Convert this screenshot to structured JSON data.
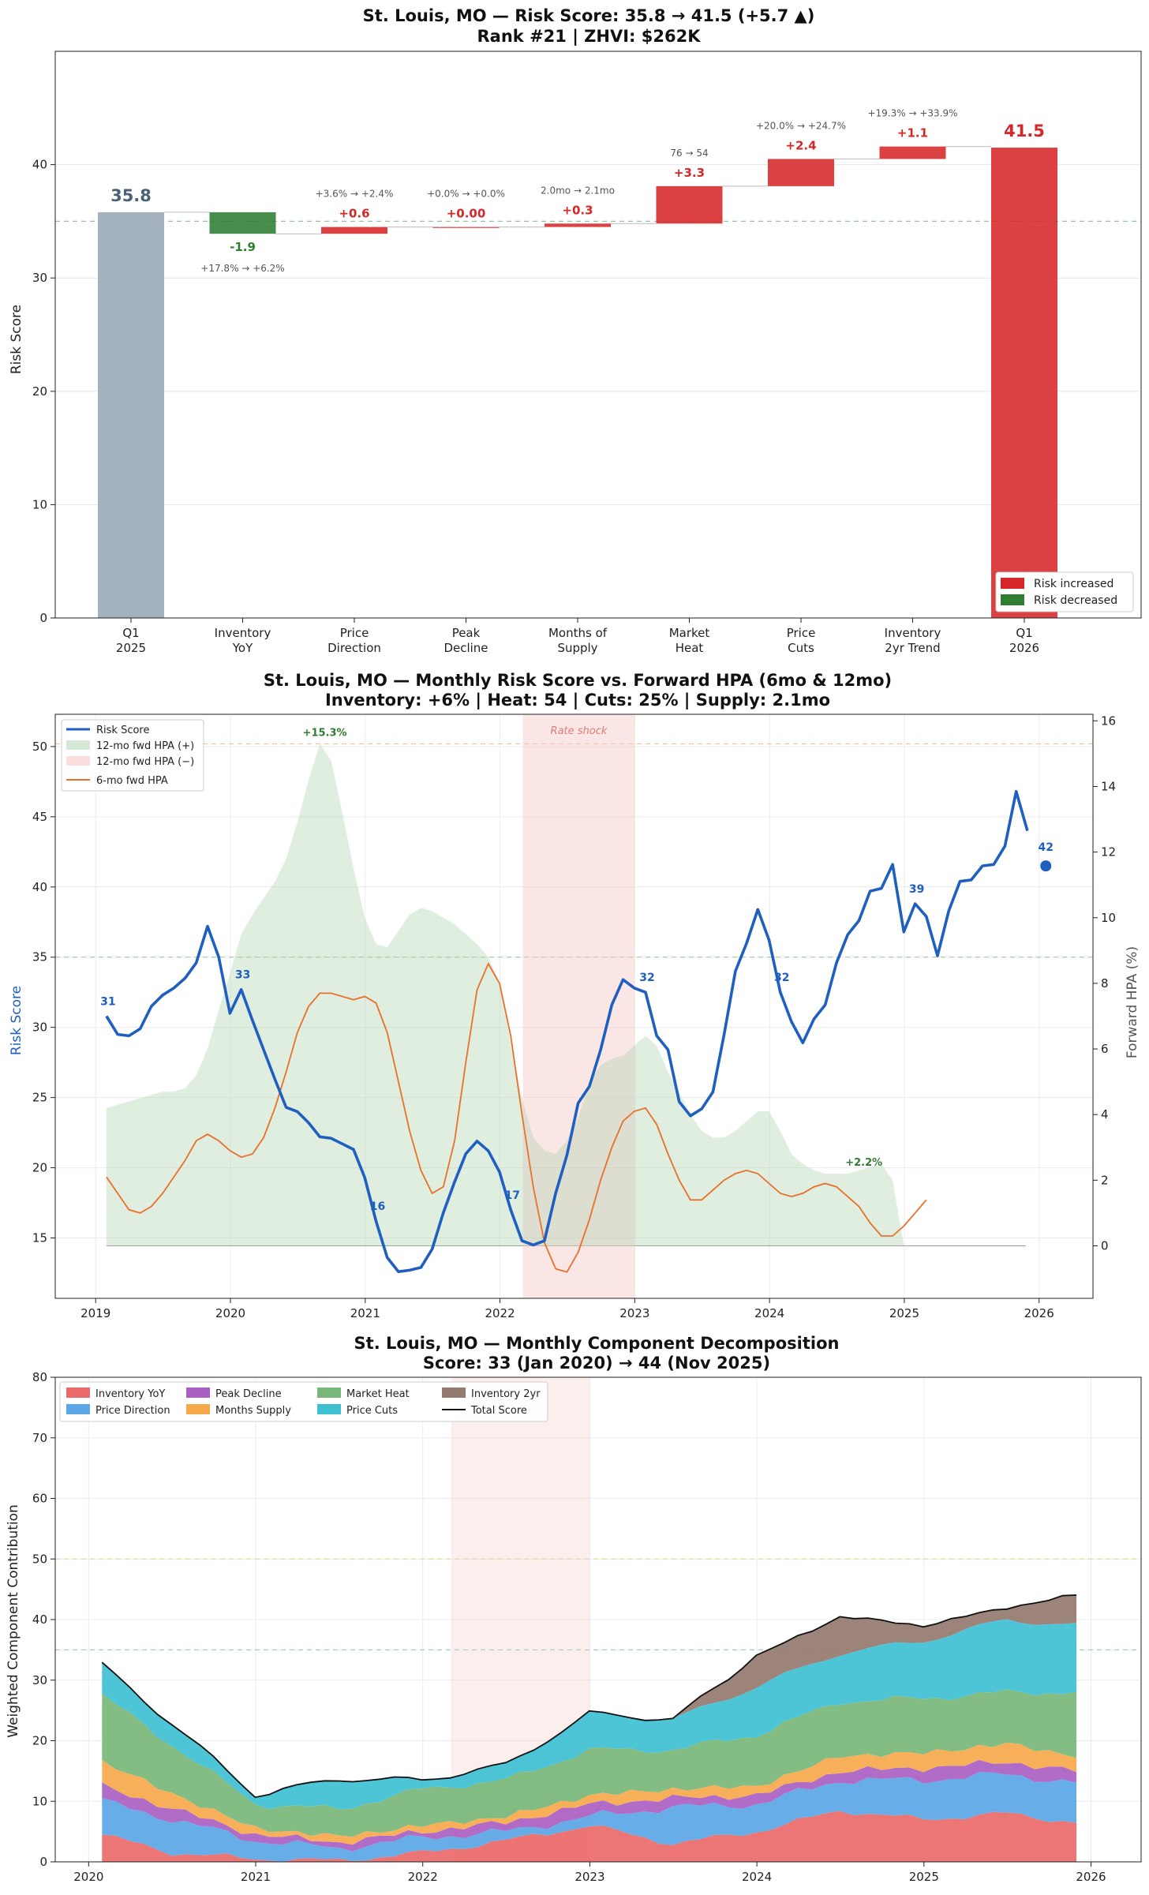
{
  "colors": {
    "increase": "#d62728",
    "decrease": "#2e7d32",
    "start": "#9eaeb8",
    "score": "#1f5fbf",
    "hpa6": "#e8702a",
    "hpa_pos": "#a5cfa5",
    "hpa_neg": "#f4b6b6",
    "shock": "#f3c9c5"
  },
  "chart_data": [
    {
      "type": "bar",
      "subtype": "waterfall",
      "title_line1": "St. Louis, MO — Risk Score: 35.8 → 41.5 (+5.7 ▲)",
      "title_line2": "Rank #21  |  ZHVI: $262K",
      "ylabel": "Risk Score",
      "ylim": [
        0,
        50
      ],
      "yticks": [
        "0",
        "10",
        "20",
        "30",
        "40"
      ],
      "reference_line": 35,
      "steps": [
        {
          "cat1": "Q1",
          "cat2": "2025",
          "kind": "start",
          "value": 35.8,
          "label": "35.8",
          "note": ""
        },
        {
          "cat1": "Inventory",
          "cat2": "YoY",
          "kind": "delta",
          "value": -1.9,
          "label": "-1.9",
          "note": "+17.8% → +6.2%"
        },
        {
          "cat1": "Price",
          "cat2": "Direction",
          "kind": "delta",
          "value": 0.6,
          "label": "+0.6",
          "note": "+3.6% → +2.4%"
        },
        {
          "cat1": "Peak",
          "cat2": "Decline",
          "kind": "delta",
          "value": 0.0,
          "label": "+0.00",
          "note": "+0.0% → +0.0%"
        },
        {
          "cat1": "Months of",
          "cat2": "Supply",
          "kind": "delta",
          "value": 0.3,
          "label": "+0.3",
          "note": "2.0mo → 2.1mo"
        },
        {
          "cat1": "Market",
          "cat2": "Heat",
          "kind": "delta",
          "value": 3.3,
          "label": "+3.3",
          "note": "76 → 54"
        },
        {
          "cat1": "Price",
          "cat2": "Cuts",
          "kind": "delta",
          "value": 2.4,
          "label": "+2.4",
          "note": "+20.0% → +24.7%"
        },
        {
          "cat1": "Inventory",
          "cat2": "2yr Trend",
          "kind": "delta",
          "value": 1.1,
          "label": "+1.1",
          "note": "+19.3% → +33.9%"
        },
        {
          "cat1": "Q1",
          "cat2": "2026",
          "kind": "end",
          "value": 41.5,
          "label": "41.5",
          "note": ""
        }
      ],
      "legend": [
        "Risk increased",
        "Risk decreased"
      ]
    },
    {
      "type": "line",
      "title_line1": "St. Louis, MO — Monthly Risk Score vs. Forward HPA (6mo & 12mo)",
      "title_line2": "Inventory: +6%  |  Heat: 54  |  Cuts: 25%  |  Supply: 2.1mo",
      "ylabel_left": "Risk Score",
      "ylabel_right": "Forward HPA (%)",
      "ylim_left": [
        10.7,
        52.3
      ],
      "ylim_right": [
        -1.6,
        16.2
      ],
      "xlim": [
        2018.7,
        2026.4
      ],
      "xticks": [
        "2019",
        "2020",
        "2021",
        "2022",
        "2023",
        "2024",
        "2025",
        "2026"
      ],
      "yticks_left": [
        "15",
        "20",
        "25",
        "30",
        "35",
        "40",
        "45",
        "50"
      ],
      "yticks_right": [
        "0",
        "2",
        "4",
        "6",
        "8",
        "10",
        "12",
        "14",
        "16"
      ],
      "reference_line_left": 35,
      "reference_line_right": 15.3,
      "shock_band": [
        2022.17,
        2023.0
      ],
      "shock_label": "Rate shock",
      "legend": [
        "Risk Score",
        "12-mo fwd HPA (+)",
        "12-mo fwd HPA (−)",
        "6-mo fwd HPA"
      ],
      "score_start_year": 2019.08,
      "score_series": [
        30.8,
        29.5,
        29.4,
        29.9,
        31.5,
        32.3,
        32.8,
        33.5,
        34.6,
        37.2,
        35.0,
        31.0,
        32.7,
        30.5,
        28.4,
        26.3,
        24.3,
        24.0,
        23.2,
        22.2,
        22.1,
        21.7,
        21.3,
        19.3,
        16.2,
        13.6,
        12.6,
        12.7,
        12.9,
        14.2,
        16.8,
        19.0,
        21.0,
        21.9,
        21.2,
        19.7,
        17.0,
        14.8,
        14.5,
        14.8,
        18.2,
        20.9,
        24.6,
        25.8,
        28.4,
        31.6,
        33.4,
        32.8,
        32.5,
        29.4,
        28.4,
        24.7,
        23.7,
        24.2,
        25.4,
        29.5,
        34.0,
        36.0,
        38.4,
        36.2,
        32.5,
        30.4,
        28.9,
        30.6,
        31.6,
        34.6,
        36.6,
        37.6,
        39.7,
        39.9,
        41.6,
        36.8,
        38.8,
        37.9,
        35.1,
        38.3,
        40.4,
        40.5,
        41.5,
        41.6,
        42.9,
        46.8,
        44.0
      ],
      "score_point_labels": [
        [
          "31",
          2019.08
        ],
        [
          "33",
          2020.08
        ],
        [
          "16",
          2021.08
        ],
        [
          "17",
          2022.08
        ],
        [
          "32",
          2023.08
        ],
        [
          "32",
          2024.08
        ],
        [
          "39",
          2025.08
        ]
      ],
      "final_point": {
        "x": 2026.05,
        "y": 41.5,
        "label": "42"
      },
      "hpa12_start_year": 2019.08,
      "hpa12_series": [
        4.2,
        4.3,
        4.4,
        4.5,
        4.6,
        4.7,
        4.7,
        4.8,
        5.2,
        6.0,
        7.2,
        8.3,
        9.5,
        10.1,
        10.6,
        11.1,
        11.8,
        12.9,
        14.2,
        15.3,
        14.8,
        13.2,
        11.5,
        10.0,
        9.2,
        9.1,
        9.6,
        10.1,
        10.3,
        10.2,
        10.0,
        9.8,
        9.5,
        9.2,
        8.8,
        8.0,
        6.2,
        4.5,
        3.3,
        2.9,
        2.8,
        3.2,
        3.9,
        5.0,
        5.5,
        5.7,
        5.8,
        6.1,
        6.4,
        6.1,
        5.3,
        4.7,
        4.0,
        3.5,
        3.3,
        3.3,
        3.5,
        3.8,
        4.1,
        4.1,
        3.5,
        2.8,
        2.5,
        2.3,
        2.2,
        2.2,
        2.2,
        2.3,
        2.4,
        2.5,
        2.0,
        0.0
      ],
      "hpa12_labels": [
        [
          "+15.3%",
          2020.7,
          15.3
        ],
        [
          "+2.2%",
          2024.7,
          2.2
        ]
      ],
      "hpa6_start_year": 2019.08,
      "hpa6_series": [
        2.1,
        1.6,
        1.1,
        1.0,
        1.2,
        1.6,
        2.1,
        2.6,
        3.2,
        3.4,
        3.2,
        2.9,
        2.7,
        2.8,
        3.3,
        4.2,
        5.3,
        6.5,
        7.3,
        7.7,
        7.7,
        7.6,
        7.5,
        7.6,
        7.4,
        6.5,
        5.0,
        3.5,
        2.3,
        1.6,
        1.8,
        3.2,
        5.6,
        7.8,
        8.6,
        8.0,
        6.4,
        4.0,
        1.8,
        0.1,
        -0.7,
        -0.8,
        -0.2,
        0.8,
        2.0,
        3.0,
        3.8,
        4.1,
        4.2,
        3.7,
        2.8,
        2.0,
        1.4,
        1.4,
        1.7,
        2.0,
        2.2,
        2.3,
        2.2,
        1.9,
        1.6,
        1.5,
        1.6,
        1.8,
        1.9,
        1.8,
        1.5,
        1.2,
        0.7,
        0.3,
        0.3,
        0.6,
        1.0,
        1.4
      ]
    },
    {
      "type": "area",
      "title_line1": "St. Louis, MO — Monthly Component Decomposition",
      "title_line2": "Score: 33 (Jan 2020) → 44 (Nov 2025)",
      "ylabel": "Weighted Component Contribution",
      "ylim": [
        0,
        80
      ],
      "xlim": [
        2019.8,
        2026.3
      ],
      "xticks": [
        "2020",
        "2021",
        "2022",
        "2023",
        "2024",
        "2025",
        "2026"
      ],
      "yticks": [
        "0",
        "10",
        "20",
        "30",
        "40",
        "50",
        "60",
        "70",
        "80"
      ],
      "reference_lines": [
        50,
        35
      ],
      "shock_band": [
        2022.17,
        2023.0
      ],
      "start_year": 2020.08,
      "months": 71,
      "series_names": [
        "Inventory YoY",
        "Price Direction",
        "Peak Decline",
        "Months Supply",
        "Market Heat",
        "Price Cuts",
        "Inventory 2yr",
        "Total Score"
      ],
      "series_colors": [
        "#ea6a69",
        "#5aa6e6",
        "#aa60c3",
        "#f6a94b",
        "#78b77a",
        "#3ec0d2",
        "#957a70",
        "#111111"
      ],
      "anchors": {
        "t": [
          2020.08,
          2020.5,
          2021.0,
          2021.5,
          2022.0,
          2022.5,
          2023.0,
          2023.5,
          2024.0,
          2024.5,
          2025.0,
          2025.5,
          2025.9
        ],
        "inv_yoy": [
          4.5,
          1.5,
          0.5,
          0.2,
          1.5,
          3.5,
          6.0,
          3.0,
          5.0,
          8.5,
          7.0,
          8.0,
          6.5
        ],
        "price": [
          5.5,
          5.5,
          3.0,
          2.0,
          2.5,
          1.5,
          1.5,
          6.0,
          4.5,
          5.0,
          6.5,
          6.5,
          6.5
        ],
        "peak": [
          2.5,
          1.8,
          1.0,
          1.0,
          1.0,
          1.5,
          2.0,
          1.5,
          1.5,
          1.5,
          2.0,
          2.0,
          2.0
        ],
        "supply": [
          4.0,
          2.5,
          1.0,
          1.0,
          1.0,
          1.0,
          1.5,
          1.5,
          1.5,
          2.5,
          2.5,
          3.0,
          2.5
        ],
        "heat": [
          11.0,
          8.0,
          4.0,
          4.5,
          6.0,
          6.0,
          7.5,
          6.5,
          8.5,
          9.0,
          9.0,
          8.5,
          10.5
        ],
        "cuts": [
          5.0,
          3.5,
          1.5,
          5.0,
          1.5,
          2.5,
          6.0,
          5.0,
          8.0,
          8.0,
          9.5,
          12.0,
          11.0
        ],
        "inv2yr": [
          0.0,
          0.0,
          0.0,
          0.0,
          0.0,
          0.0,
          0.0,
          0.0,
          5.0,
          6.0,
          2.5,
          2.0,
          5.0
        ]
      }
    }
  ]
}
